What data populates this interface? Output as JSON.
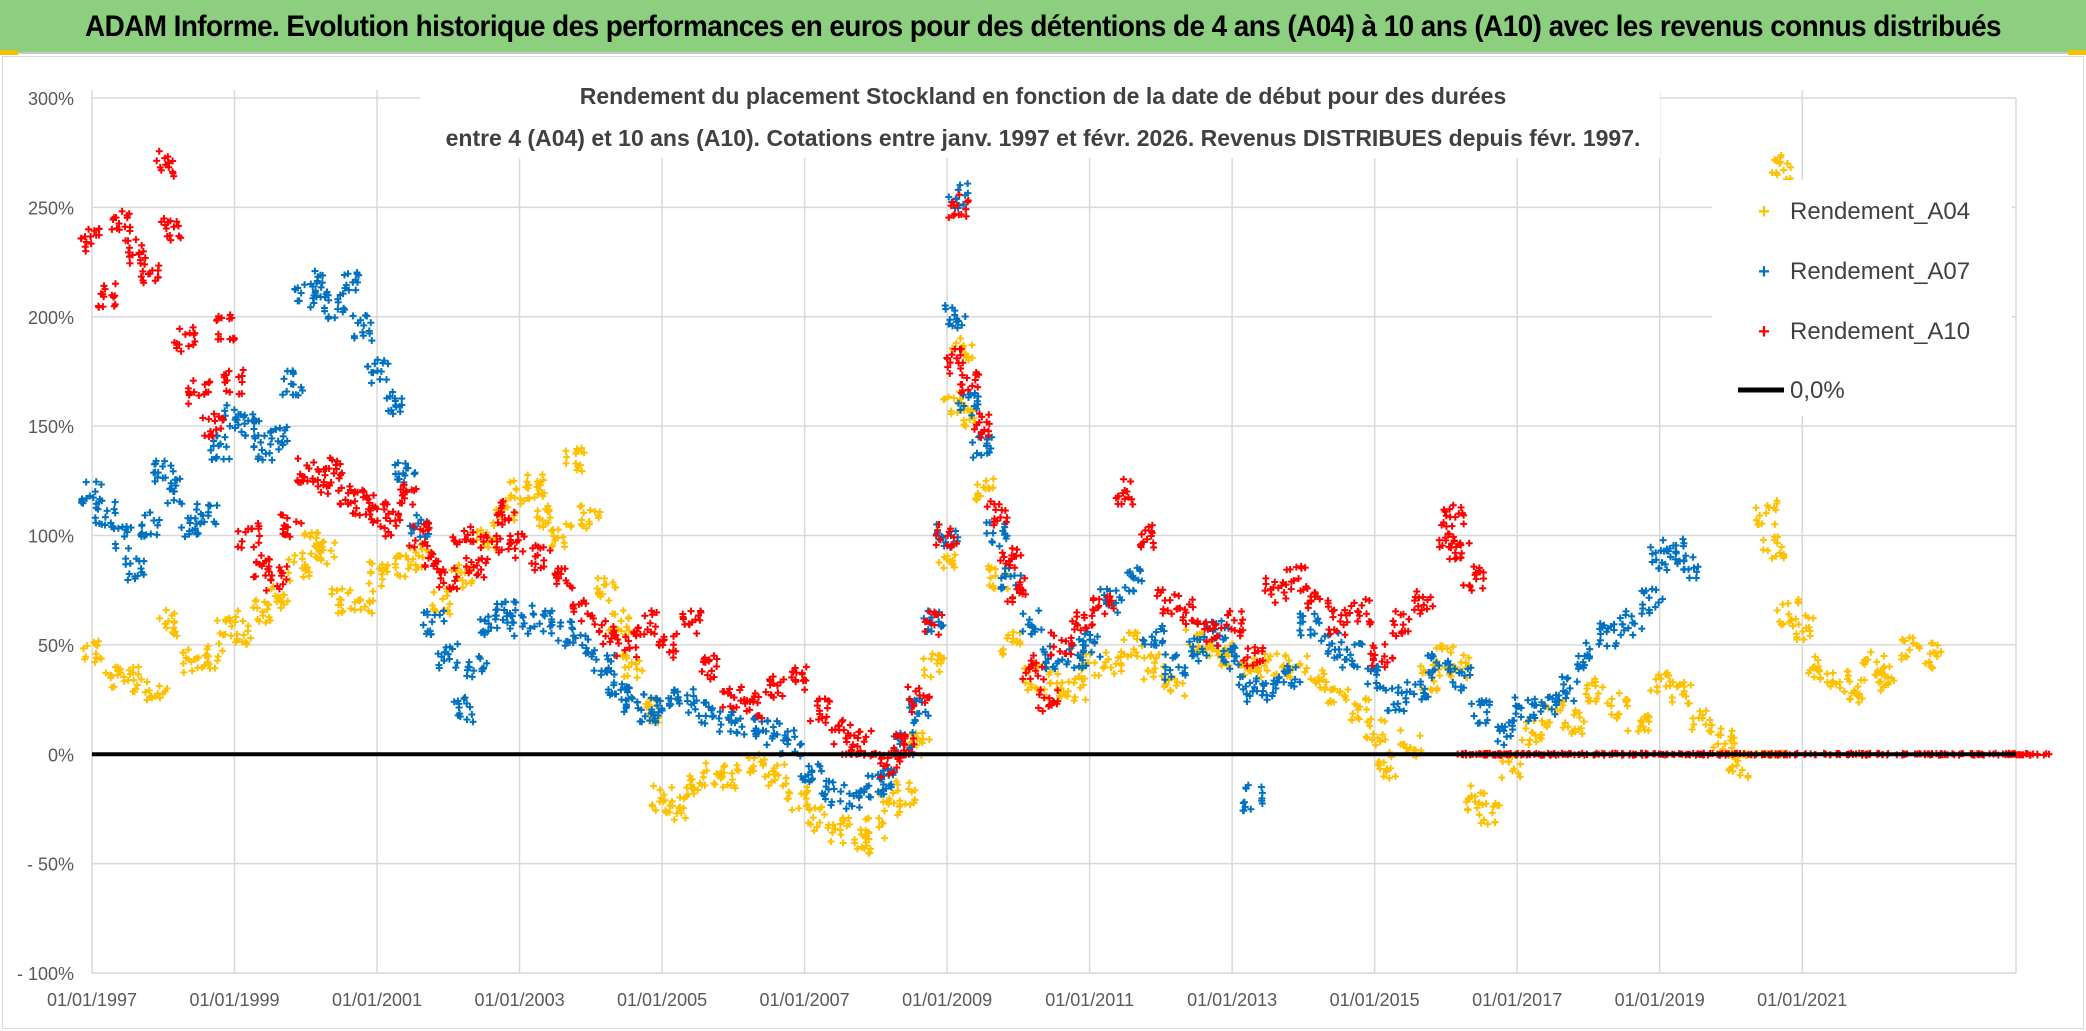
{
  "banner": {
    "title": "ADAM Informe. Evolution historique des performances en euros pour des détentions de 4 ans (A04) à 10 ans (A10) avec les revenus connus distribués"
  },
  "colors": {
    "banner_bg": "#8ccf7e",
    "series_A04": "#ffc000",
    "series_A07": "#0070c0",
    "series_A10": "#ff0000",
    "zero_line": "#000000",
    "grid": "#d9d9d9"
  },
  "chart_data": {
    "type": "scatter",
    "title_line1": "Rendement du placement Stockland en fonction de la date de début pour des durées",
    "title_line2": "entre 4 (A04) et 10 ans (A10). Cotations entre janv. 1997 et févr. 2026. Revenus DISTRIBUES depuis févr. 1997.",
    "xlim": [
      1997.0,
      2024.0
    ],
    "ylim": [
      -100,
      300
    ],
    "x_ticks": [
      1997,
      1999,
      2001,
      2003,
      2005,
      2007,
      2009,
      2011,
      2013,
      2015,
      2017,
      2019,
      2021
    ],
    "x_tick_labels": [
      "01/01/1997",
      "01/01/1999",
      "01/01/2001",
      "01/01/2003",
      "01/01/2005",
      "01/01/2007",
      "01/01/2009",
      "01/01/2011",
      "01/01/2013",
      "01/01/2015",
      "01/01/2017",
      "01/01/2019",
      "01/01/2021"
    ],
    "y_ticks": [
      300,
      250,
      200,
      150,
      100,
      50,
      0,
      -50,
      -100
    ],
    "y_tick_labels": [
      "300%",
      "250%",
      "200%",
      "150%",
      "100%",
      "50%",
      "0%",
      "- 50%",
      "- 100%"
    ],
    "legend": {
      "position": "top-right",
      "entries": [
        "Rendement_A04",
        "Rendement_A07",
        "Rendement_A10",
        "0,0%"
      ]
    },
    "series": [
      {
        "name": "Rendement_A04",
        "color": "#ffc000",
        "points": [
          [
            1997.0,
            48
          ],
          [
            1997.3,
            35
          ],
          [
            1997.6,
            34
          ],
          [
            1997.9,
            30
          ],
          [
            1998.1,
            60
          ],
          [
            1998.4,
            42
          ],
          [
            1998.7,
            45
          ],
          [
            1998.9,
            60
          ],
          [
            1999.1,
            56
          ],
          [
            1999.4,
            65
          ],
          [
            1999.6,
            72
          ],
          [
            1999.9,
            85
          ],
          [
            2000.1,
            96
          ],
          [
            2000.3,
            92
          ],
          [
            2000.5,
            70
          ],
          [
            2000.8,
            70
          ],
          [
            2001.0,
            82
          ],
          [
            2001.3,
            85
          ],
          [
            2001.6,
            90
          ],
          [
            2001.9,
            70
          ],
          [
            2002.2,
            82
          ],
          [
            2002.5,
            100
          ],
          [
            2002.8,
            112
          ],
          [
            2003.0,
            120
          ],
          [
            2003.2,
            122
          ],
          [
            2003.4,
            108
          ],
          [
            2003.6,
            100
          ],
          [
            2003.8,
            134
          ],
          [
            2004.0,
            108
          ],
          [
            2004.2,
            75
          ],
          [
            2004.4,
            60
          ],
          [
            2004.6,
            40
          ],
          [
            2004.8,
            20
          ],
          [
            2005.0,
            -20
          ],
          [
            2005.2,
            -25
          ],
          [
            2005.4,
            -15
          ],
          [
            2005.7,
            -10
          ],
          [
            2006.0,
            -10
          ],
          [
            2006.3,
            -5
          ],
          [
            2006.6,
            -10
          ],
          [
            2006.9,
            -20
          ],
          [
            2007.2,
            -30
          ],
          [
            2007.5,
            -35
          ],
          [
            2007.8,
            -40
          ],
          [
            2008.0,
            -35
          ],
          [
            2008.2,
            -22
          ],
          [
            2008.4,
            -18
          ],
          [
            2008.6,
            5
          ],
          [
            2008.8,
            40
          ],
          [
            2009.0,
            90
          ],
          [
            2009.1,
            160
          ],
          [
            2009.2,
            185
          ],
          [
            2009.3,
            155
          ],
          [
            2009.5,
            120
          ],
          [
            2009.7,
            80
          ],
          [
            2009.9,
            50
          ],
          [
            2010.2,
            35
          ],
          [
            2010.5,
            32
          ],
          [
            2010.8,
            30
          ],
          [
            2011.0,
            40
          ],
          [
            2011.3,
            42
          ],
          [
            2011.6,
            50
          ],
          [
            2011.9,
            40
          ],
          [
            2012.2,
            32
          ],
          [
            2012.5,
            52
          ],
          [
            2012.8,
            48
          ],
          [
            2013.0,
            45
          ],
          [
            2013.3,
            38
          ],
          [
            2013.6,
            42
          ],
          [
            2013.9,
            40
          ],
          [
            2014.2,
            35
          ],
          [
            2014.5,
            25
          ],
          [
            2014.8,
            20
          ],
          [
            2015.0,
            10
          ],
          [
            2015.2,
            -5
          ],
          [
            2015.5,
            5
          ],
          [
            2015.8,
            35
          ],
          [
            2016.0,
            45
          ],
          [
            2016.2,
            40
          ],
          [
            2016.4,
            -20
          ],
          [
            2016.6,
            -28
          ],
          [
            2016.9,
            -5
          ],
          [
            2017.2,
            10
          ],
          [
            2017.5,
            18
          ],
          [
            2017.8,
            15
          ],
          [
            2018.1,
            30
          ],
          [
            2018.4,
            22
          ],
          [
            2018.7,
            15
          ],
          [
            2019.0,
            32
          ],
          [
            2019.3,
            28
          ],
          [
            2019.6,
            15
          ],
          [
            2019.9,
            8
          ],
          [
            2020.1,
            -5
          ],
          [
            2020.3,
            0
          ],
          [
            2020.5,
            110
          ],
          [
            2020.6,
            95
          ],
          [
            2020.8,
            65
          ],
          [
            2021.0,
            58
          ],
          [
            2021.2,
            40
          ],
          [
            2021.5,
            32
          ],
          [
            2021.8,
            28
          ],
          [
            2022.0,
            42
          ],
          [
            2022.2,
            35
          ],
          [
            2022.5,
            48
          ],
          [
            2022.8,
            45
          ],
          [
            2020.7,
            268
          ]
        ]
      },
      {
        "name": "Rendement_A07",
        "color": "#0070c0",
        "points": [
          [
            1997.0,
            120
          ],
          [
            1997.2,
            110
          ],
          [
            1997.4,
            100
          ],
          [
            1997.6,
            85
          ],
          [
            1997.8,
            105
          ],
          [
            1998.0,
            130
          ],
          [
            1998.2,
            120
          ],
          [
            1998.4,
            105
          ],
          [
            1998.6,
            110
          ],
          [
            1998.8,
            140
          ],
          [
            1999.0,
            155
          ],
          [
            1999.2,
            150
          ],
          [
            1999.4,
            140
          ],
          [
            1999.6,
            145
          ],
          [
            1999.8,
            170
          ],
          [
            2000.0,
            210
          ],
          [
            2000.2,
            215
          ],
          [
            2000.4,
            205
          ],
          [
            2000.6,
            215
          ],
          [
            2000.8,
            195
          ],
          [
            2001.0,
            175
          ],
          [
            2001.2,
            160
          ],
          [
            2001.4,
            130
          ],
          [
            2001.6,
            105
          ],
          [
            2001.8,
            60
          ],
          [
            2002.0,
            45
          ],
          [
            2002.2,
            20
          ],
          [
            2002.4,
            40
          ],
          [
            2002.6,
            60
          ],
          [
            2002.8,
            65
          ],
          [
            2003.0,
            60
          ],
          [
            2003.3,
            62
          ],
          [
            2003.6,
            55
          ],
          [
            2003.9,
            50
          ],
          [
            2004.2,
            40
          ],
          [
            2004.4,
            30
          ],
          [
            2004.6,
            25
          ],
          [
            2004.8,
            20
          ],
          [
            2005.0,
            20
          ],
          [
            2005.3,
            25
          ],
          [
            2005.6,
            20
          ],
          [
            2005.9,
            15
          ],
          [
            2006.2,
            12
          ],
          [
            2006.5,
            10
          ],
          [
            2006.8,
            5
          ],
          [
            2007.1,
            -10
          ],
          [
            2007.4,
            -18
          ],
          [
            2007.7,
            -20
          ],
          [
            2008.0,
            -15
          ],
          [
            2008.2,
            -10
          ],
          [
            2008.4,
            5
          ],
          [
            2008.6,
            20
          ],
          [
            2008.8,
            60
          ],
          [
            2009.0,
            100
          ],
          [
            2009.1,
            200
          ],
          [
            2009.15,
            255
          ],
          [
            2009.3,
            160
          ],
          [
            2009.5,
            140
          ],
          [
            2009.7,
            100
          ],
          [
            2009.9,
            80
          ],
          [
            2010.2,
            60
          ],
          [
            2010.5,
            45
          ],
          [
            2010.8,
            45
          ],
          [
            2011.0,
            50
          ],
          [
            2011.3,
            70
          ],
          [
            2011.6,
            80
          ],
          [
            2011.9,
            55
          ],
          [
            2012.2,
            40
          ],
          [
            2012.5,
            48
          ],
          [
            2012.8,
            55
          ],
          [
            2013.0,
            45
          ],
          [
            2013.2,
            30
          ],
          [
            2013.3,
            -20
          ],
          [
            2013.5,
            30
          ],
          [
            2013.8,
            35
          ],
          [
            2014.1,
            60
          ],
          [
            2014.4,
            50
          ],
          [
            2014.7,
            45
          ],
          [
            2015.0,
            35
          ],
          [
            2015.3,
            25
          ],
          [
            2015.6,
            30
          ],
          [
            2015.9,
            40
          ],
          [
            2016.2,
            35
          ],
          [
            2016.5,
            20
          ],
          [
            2016.8,
            10
          ],
          [
            2017.1,
            20
          ],
          [
            2017.4,
            22
          ],
          [
            2017.7,
            30
          ],
          [
            2018.0,
            45
          ],
          [
            2018.3,
            55
          ],
          [
            2018.6,
            60
          ],
          [
            2018.9,
            70
          ],
          [
            2019.0,
            90
          ],
          [
            2019.2,
            95
          ],
          [
            2019.4,
            85
          ]
        ]
      },
      {
        "name": "Rendement_A10",
        "color": "#ff0000",
        "points": [
          [
            1997.0,
            235
          ],
          [
            1997.2,
            210
          ],
          [
            1997.4,
            245
          ],
          [
            1997.6,
            230
          ],
          [
            1997.8,
            220
          ],
          [
            1998.0,
            270
          ],
          [
            1998.1,
            240
          ],
          [
            1998.3,
            190
          ],
          [
            1998.5,
            165
          ],
          [
            1998.7,
            150
          ],
          [
            1998.9,
            195
          ],
          [
            1999.0,
            170
          ],
          [
            1999.2,
            100
          ],
          [
            1999.4,
            85
          ],
          [
            1999.6,
            80
          ],
          [
            1999.8,
            105
          ],
          [
            2000.0,
            130
          ],
          [
            2000.2,
            125
          ],
          [
            2000.4,
            130
          ],
          [
            2000.6,
            120
          ],
          [
            2000.8,
            115
          ],
          [
            2001.0,
            110
          ],
          [
            2001.2,
            105
          ],
          [
            2001.4,
            120
          ],
          [
            2001.6,
            100
          ],
          [
            2001.8,
            90
          ],
          [
            2002.0,
            80
          ],
          [
            2002.2,
            100
          ],
          [
            2002.4,
            85
          ],
          [
            2002.6,
            95
          ],
          [
            2002.8,
            110
          ],
          [
            2003.0,
            95
          ],
          [
            2003.3,
            90
          ],
          [
            2003.6,
            80
          ],
          [
            2003.9,
            65
          ],
          [
            2004.2,
            55
          ],
          [
            2004.5,
            50
          ],
          [
            2004.8,
            60
          ],
          [
            2005.1,
            50
          ],
          [
            2005.4,
            60
          ],
          [
            2005.7,
            40
          ],
          [
            2006.0,
            25
          ],
          [
            2006.3,
            22
          ],
          [
            2006.6,
            30
          ],
          [
            2006.9,
            35
          ],
          [
            2007.2,
            20
          ],
          [
            2007.5,
            10
          ],
          [
            2007.8,
            5
          ],
          [
            2008.0,
            0
          ],
          [
            2008.2,
            -5
          ],
          [
            2008.4,
            5
          ],
          [
            2008.6,
            25
          ],
          [
            2008.8,
            60
          ],
          [
            2009.0,
            100
          ],
          [
            2009.1,
            180
          ],
          [
            2009.15,
            250
          ],
          [
            2009.3,
            170
          ],
          [
            2009.5,
            150
          ],
          [
            2009.7,
            110
          ],
          [
            2009.9,
            90
          ],
          [
            2010.0,
            75
          ],
          [
            2010.2,
            40
          ],
          [
            2010.4,
            25
          ],
          [
            2010.6,
            50
          ],
          [
            2010.9,
            60
          ],
          [
            2011.2,
            70
          ],
          [
            2011.5,
            120
          ],
          [
            2011.8,
            100
          ],
          [
            2012.1,
            70
          ],
          [
            2012.4,
            65
          ],
          [
            2012.7,
            55
          ],
          [
            2013.0,
            60
          ],
          [
            2013.3,
            45
          ],
          [
            2013.6,
            75
          ],
          [
            2013.9,
            80
          ],
          [
            2014.2,
            70
          ],
          [
            2014.5,
            60
          ],
          [
            2014.8,
            65
          ],
          [
            2015.1,
            45
          ],
          [
            2015.4,
            60
          ],
          [
            2015.7,
            70
          ],
          [
            2016.0,
            100
          ],
          [
            2016.1,
            110
          ],
          [
            2016.2,
            95
          ],
          [
            2016.4,
            80
          ],
          [
            2016.6,
            0
          ],
          [
            2017.0,
            0
          ],
          [
            2018.0,
            0
          ],
          [
            2019.0,
            0
          ],
          [
            2020.0,
            0
          ],
          [
            2021.0,
            0
          ],
          [
            2022.0,
            0
          ],
          [
            2023.0,
            0
          ],
          [
            2024.0,
            0
          ]
        ]
      }
    ],
    "zero_line": {
      "label": "0,0%",
      "value": 0
    }
  }
}
